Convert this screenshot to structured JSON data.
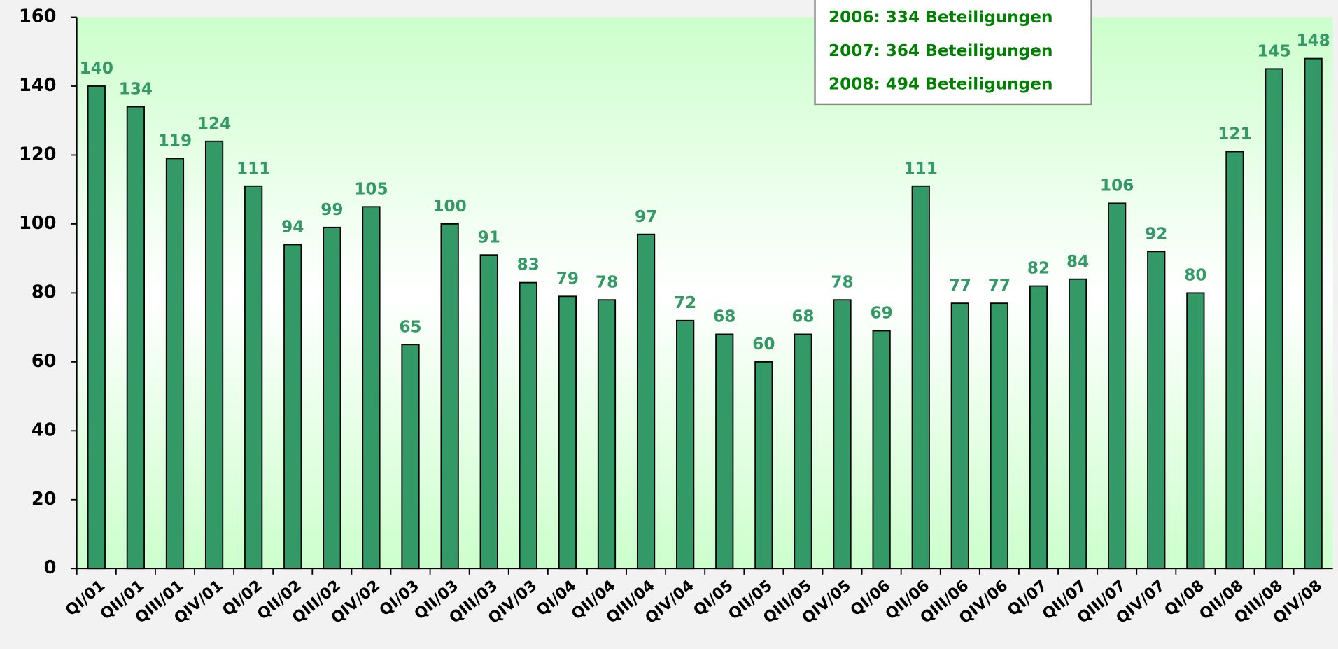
{
  "chart_data": {
    "type": "bar",
    "categories": [
      "QI/01",
      "QII/01",
      "QIII/01",
      "QIV/01",
      "QI/02",
      "QII/02",
      "QIII/02",
      "QIV/02",
      "QI/03",
      "QII/03",
      "QIII/03",
      "QIV/03",
      "QI/04",
      "QII/04",
      "QIII/04",
      "QIV/04",
      "QI/05",
      "QII/05",
      "QIII/05",
      "QIV/05",
      "QI/06",
      "QII/06",
      "QIII/06",
      "QIV/06",
      "QI/07",
      "QII/07",
      "QIII/07",
      "QIV/07",
      "QI/08",
      "QII/08",
      "QIII/08",
      "QIV/08"
    ],
    "values": [
      140,
      134,
      119,
      124,
      111,
      94,
      99,
      105,
      65,
      100,
      91,
      83,
      79,
      78,
      97,
      72,
      68,
      60,
      68,
      78,
      69,
      111,
      77,
      77,
      82,
      84,
      106,
      92,
      80,
      121,
      145,
      148
    ],
    "color": "#339966",
    "ylim": [
      0,
      160
    ],
    "yticks": [
      0,
      20,
      40,
      60,
      80,
      100,
      120,
      140,
      160
    ],
    "annotations": [
      "2006: 334 Beteiligungen",
      "2007: 364 Beteiligungen",
      "2008: 494 Beteiligungen"
    ]
  }
}
